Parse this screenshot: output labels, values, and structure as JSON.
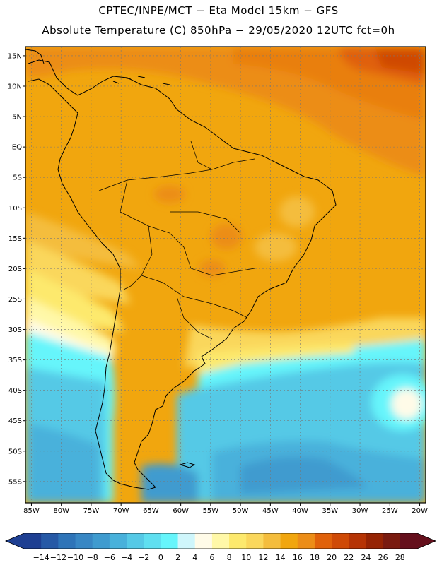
{
  "title": {
    "line1": "CPTEC/INPE/MCT  −   Eta Model 15km  −  GFS",
    "line2": "Absolute Temperature (C) 850hPa − 29/05/2020 12UTC fct=0h"
  },
  "map": {
    "lat_ticks": [
      "15N",
      "10N",
      "5N",
      "EQ",
      "5S",
      "10S",
      "15S",
      "20S",
      "25S",
      "30S",
      "35S",
      "40S",
      "45S",
      "50S",
      "55S"
    ],
    "lon_ticks": [
      "85W",
      "80W",
      "75W",
      "70W",
      "65W",
      "60W",
      "55W",
      "50W",
      "45W",
      "40W",
      "35W",
      "30W",
      "25W",
      "20W"
    ],
    "lon_range": [
      -86,
      -19
    ],
    "lat_range": [
      16.5,
      -58.5
    ]
  },
  "colorbar": {
    "labels": [
      "−14",
      "−12",
      "−10",
      "−8",
      "−6",
      "−4",
      "−2",
      "0",
      "2",
      "4",
      "6",
      "8",
      "10",
      "12",
      "14",
      "16",
      "18",
      "20",
      "22",
      "24",
      "26",
      "28"
    ],
    "colors": [
      "#1e3f92",
      "#2659a6",
      "#2e74b8",
      "#3887c4",
      "#3f9bcf",
      "#48b1db",
      "#55c9e6",
      "#5fdff0",
      "#66f5fb",
      "#cff6fb",
      "#fffbe8",
      "#fff8a8",
      "#fde96d",
      "#fad75c",
      "#f4bd3d",
      "#f1a60e",
      "#ec8d17",
      "#e0610a",
      "#cf4a06",
      "#b63405",
      "#962404",
      "#7a1b10",
      "#650f1c"
    ],
    "left_arrow_color": "#1e3f92",
    "right_arrow_color": "#650f1c"
  },
  "colors": {
    "land_orange": "#f1a60e",
    "warm_orange": "#ec8d17",
    "cool_cyan": "#55c9e6",
    "coastline": "#000000"
  }
}
